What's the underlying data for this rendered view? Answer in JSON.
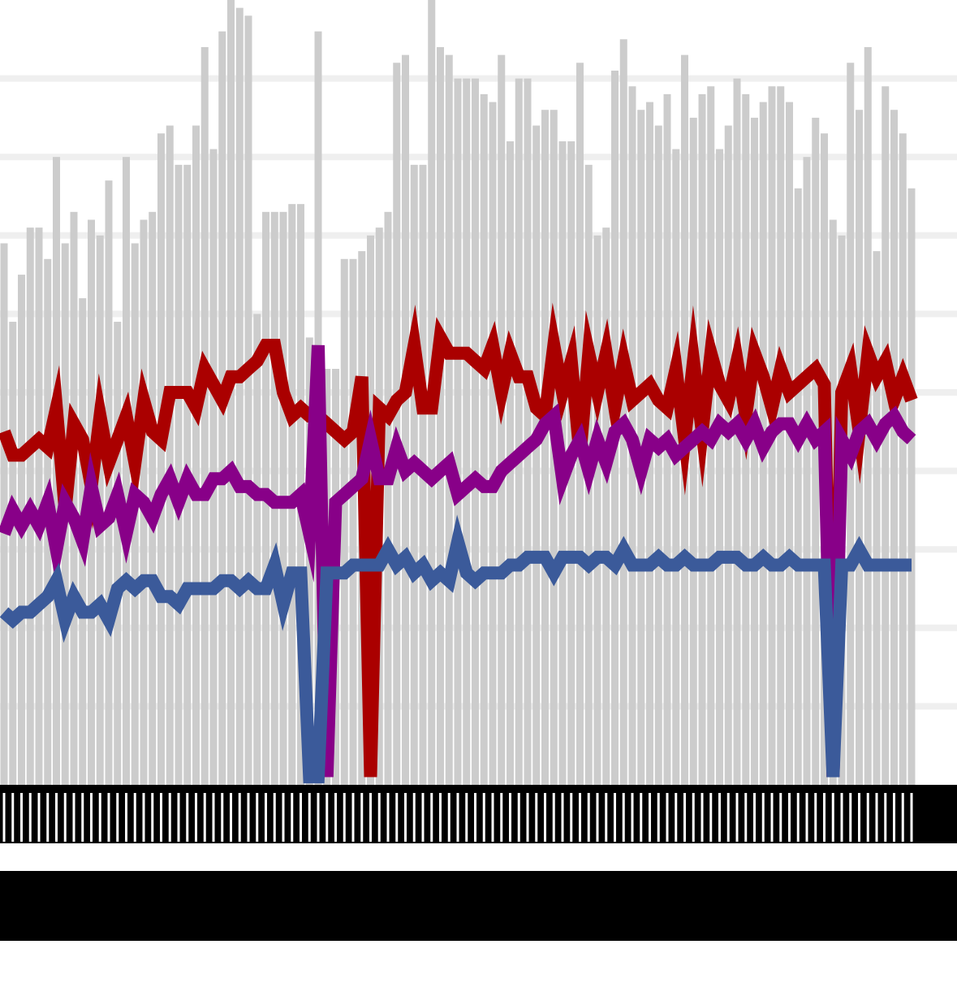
{
  "chart_data": {
    "type": "bar+line",
    "title": "",
    "xlabel": "",
    "ylabel": "",
    "n_points": 105,
    "ylim": [
      0,
      100
    ],
    "grid": true,
    "legend": "none",
    "tick_labels_legible": false,
    "bars": {
      "name": "",
      "color": "#cccccc",
      "values": [
        69,
        59,
        65,
        71,
        71,
        67,
        80,
        69,
        73,
        62,
        72,
        70,
        77,
        59,
        80,
        69,
        72,
        73,
        83,
        84,
        79,
        79,
        84,
        94,
        81,
        96,
        102,
        99,
        98,
        60,
        73,
        73,
        73,
        74,
        74,
        57,
        96,
        53,
        53,
        67,
        67,
        68,
        70,
        71,
        73,
        92,
        93,
        79,
        79,
        103,
        94,
        93,
        90,
        90,
        90,
        88,
        87,
        93,
        82,
        90,
        90,
        84,
        86,
        86,
        82,
        82,
        92,
        79,
        70,
        71,
        91,
        95,
        89,
        86,
        87,
        84,
        88,
        81,
        93,
        85,
        88,
        89,
        81,
        84,
        90,
        88,
        85,
        87,
        89,
        89,
        87,
        76,
        80,
        85,
        83,
        72,
        70,
        92,
        86,
        94,
        68,
        89,
        86,
        83,
        76
      ]
    },
    "series": [
      {
        "name": "",
        "color": "#aa0000",
        "values": [
          45,
          42,
          42,
          43,
          44,
          43,
          48,
          35,
          46,
          44,
          38,
          47,
          41,
          44,
          47,
          41,
          49,
          45,
          44,
          50,
          50,
          50,
          48,
          53,
          51,
          49,
          52,
          52,
          53,
          54,
          56,
          56,
          50,
          47,
          48,
          47,
          47,
          46,
          45,
          44,
          45,
          52,
          1,
          48,
          47,
          49,
          50,
          56,
          48,
          48,
          57,
          55,
          55,
          55,
          54,
          53,
          56,
          50,
          55,
          52,
          52,
          48,
          47,
          56,
          50,
          54,
          42,
          55,
          50,
          55,
          48,
          54,
          49,
          50,
          51,
          49,
          48,
          53,
          44,
          54,
          45,
          55,
          51,
          49,
          54,
          47,
          55,
          52,
          48,
          53,
          50,
          51,
          52,
          53,
          51,
          1,
          50,
          53,
          45,
          55,
          52,
          54,
          49,
          52,
          49
        ]
      },
      {
        "name": "",
        "color": "#880088",
        "values": [
          32,
          35,
          33,
          35,
          33,
          36,
          30,
          36,
          34,
          31,
          38,
          33,
          34,
          37,
          32,
          37,
          36,
          34,
          37,
          39,
          36,
          39,
          37,
          37,
          39,
          39,
          40,
          38,
          38,
          37,
          37,
          36,
          36,
          36,
          37,
          32,
          56,
          1,
          36,
          37,
          38,
          39,
          44,
          39,
          39,
          43,
          40,
          41,
          40,
          39,
          40,
          41,
          37,
          38,
          39,
          38,
          38,
          40,
          41,
          42,
          43,
          44,
          46,
          47,
          39,
          42,
          44,
          40,
          44,
          41,
          45,
          46,
          44,
          40,
          44,
          43,
          44,
          42,
          43,
          44,
          45,
          44,
          46,
          45,
          46,
          44,
          46,
          43,
          45,
          46,
          46,
          44,
          46,
          44,
          45,
          1,
          44,
          42,
          45,
          46,
          44,
          46,
          47,
          45,
          44
        ]
      },
      {
        "name": "",
        "color": "#3b5a9a",
        "values": [
          22,
          21,
          22,
          22,
          23,
          24,
          26,
          21,
          24,
          22,
          22,
          23,
          21,
          25,
          26,
          25,
          26,
          26,
          24,
          24,
          23,
          25,
          25,
          25,
          25,
          26,
          26,
          25,
          26,
          25,
          25,
          28,
          23,
          27,
          27,
          1,
          1,
          27,
          27,
          27,
          28,
          28,
          28,
          28,
          30,
          28,
          29,
          27,
          28,
          26,
          27,
          26,
          31,
          27,
          26,
          27,
          27,
          27,
          28,
          28,
          29,
          29,
          29,
          27,
          29,
          29,
          29,
          28,
          29,
          29,
          28,
          30,
          28,
          28,
          28,
          29,
          28,
          28,
          29,
          28,
          28,
          28,
          29,
          29,
          29,
          28,
          28,
          29,
          28,
          28,
          29,
          28,
          28,
          28,
          28,
          1,
          28,
          28,
          30,
          28,
          28,
          28,
          28,
          28,
          28
        ]
      }
    ]
  }
}
